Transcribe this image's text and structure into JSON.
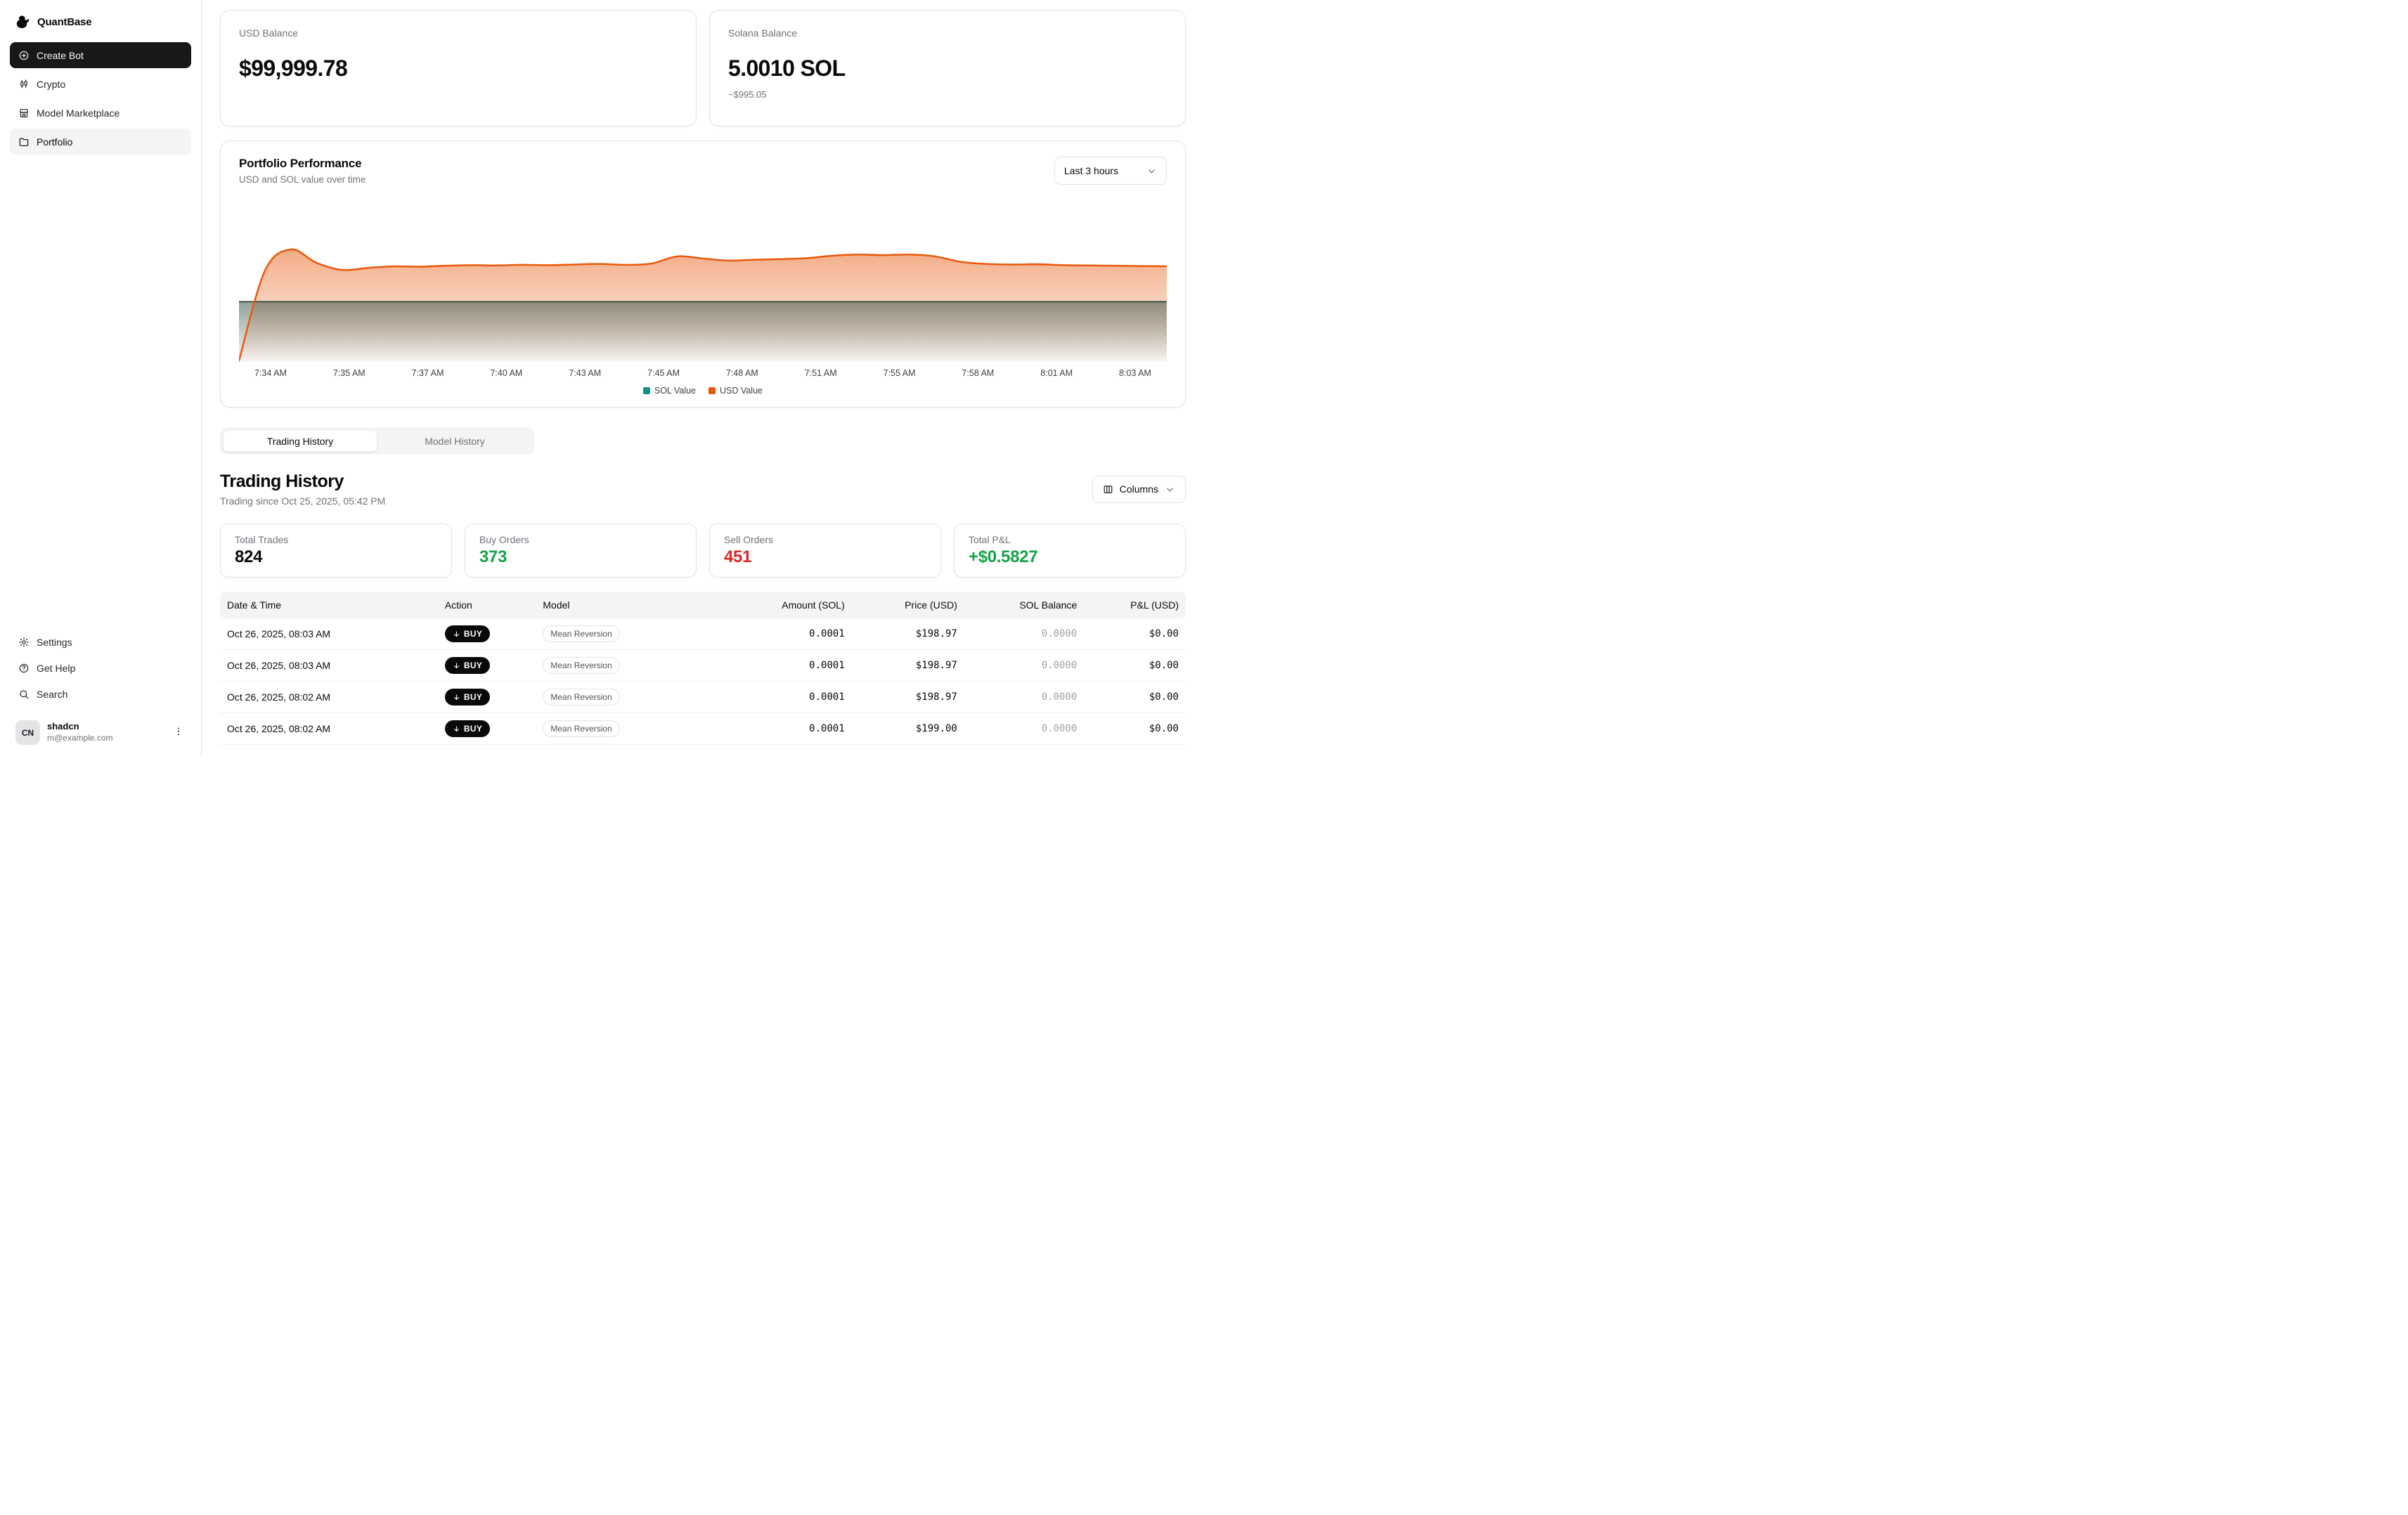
{
  "brand": {
    "name": "QuantBase"
  },
  "sidebar": {
    "items": [
      {
        "label": "Create Bot",
        "active": true
      },
      {
        "label": "Crypto"
      },
      {
        "label": "Model Marketplace"
      },
      {
        "label": "Portfolio",
        "highlighted": true
      }
    ],
    "footer_items": [
      {
        "label": "Settings"
      },
      {
        "label": "Get Help"
      },
      {
        "label": "Search"
      }
    ],
    "user": {
      "initials": "CN",
      "name": "shadcn",
      "email": "m@example.com"
    }
  },
  "balances": {
    "usd": {
      "label": "USD Balance",
      "value": "$99,999.78"
    },
    "sol": {
      "label": "Solana Balance",
      "value": "5.0010 SOL",
      "approx": "~$995.05"
    }
  },
  "performance": {
    "title": "Portfolio Performance",
    "subtitle": "USD and SOL value over time",
    "range_selected": "Last 3 hours"
  },
  "chart_data": {
    "type": "area",
    "title": "Portfolio Performance",
    "xlabel": "",
    "ylabel": "",
    "grid": false,
    "legend_position": "bottom",
    "ylim": [
      0,
      2650
    ],
    "x_ticks": [
      "7:34 AM",
      "7:35 AM",
      "7:37 AM",
      "7:40 AM",
      "7:43 AM",
      "7:45 AM",
      "7:48 AM",
      "7:51 AM",
      "7:55 AM",
      "7:58 AM",
      "8:01 AM",
      "8:03 AM"
    ],
    "series": [
      {
        "name": "SOL Value",
        "color": "#0f9384",
        "line_color": "#3d5245",
        "values": [
          995,
          995
        ]
      },
      {
        "name": "USD Value",
        "color": "#e8590c",
        "values": [
          20,
          1500,
          1860,
          1640,
          1520,
          1555,
          1580,
          1575,
          1590,
          1600,
          1595,
          1605,
          1600,
          1610,
          1620,
          1605,
          1625,
          1745,
          1710,
          1675,
          1690,
          1700,
          1715,
          1755,
          1775,
          1765,
          1775,
          1745,
          1655,
          1620,
          1610,
          1615,
          1600,
          1595,
          1590,
          1585,
          1580
        ]
      }
    ]
  },
  "tabs": [
    {
      "label": "Trading History",
      "active": true
    },
    {
      "label": "Model History",
      "active": false
    }
  ],
  "trading": {
    "title": "Trading History",
    "subtitle": "Trading since Oct 25, 2025, 05:42 PM",
    "columns_label": "Columns",
    "stats": [
      {
        "label": "Total Trades",
        "value": "824",
        "color": "#09090b"
      },
      {
        "label": "Buy Orders",
        "value": "373",
        "color": "#16a34a"
      },
      {
        "label": "Sell Orders",
        "value": "451",
        "color": "#dc2626"
      },
      {
        "label": "Total P&L",
        "value": "+$0.5827",
        "color": "#16a34a"
      }
    ],
    "table": {
      "headers": [
        "Date & Time",
        "Action",
        "Model",
        "Amount (SOL)",
        "Price (USD)",
        "SOL Balance",
        "P&L (USD)"
      ],
      "rows": [
        {
          "datetime": "Oct 26, 2025, 08:03 AM",
          "action": "BUY",
          "model": "Mean Reversion",
          "amount": "0.0001",
          "price": "$198.97",
          "sol_balance": "0.0000",
          "pnl": "$0.00"
        },
        {
          "datetime": "Oct 26, 2025, 08:03 AM",
          "action": "BUY",
          "model": "Mean Reversion",
          "amount": "0.0001",
          "price": "$198.97",
          "sol_balance": "0.0000",
          "pnl": "$0.00"
        },
        {
          "datetime": "Oct 26, 2025, 08:02 AM",
          "action": "BUY",
          "model": "Mean Reversion",
          "amount": "0.0001",
          "price": "$198.97",
          "sol_balance": "0.0000",
          "pnl": "$0.00"
        },
        {
          "datetime": "Oct 26, 2025, 08:02 AM",
          "action": "BUY",
          "model": "Mean Reversion",
          "amount": "0.0001",
          "price": "$199.00",
          "sol_balance": "0.0000",
          "pnl": "$0.00"
        }
      ]
    }
  }
}
